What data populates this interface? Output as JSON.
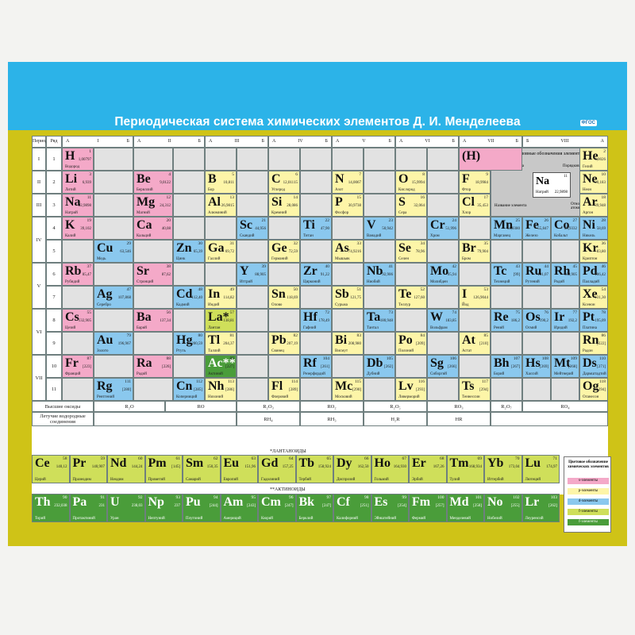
{
  "title": "Периодическая система химических элементов Д. И. Менделеева",
  "badge": "ФГОС",
  "header": {
    "period": "Период",
    "row": "Ряд",
    "viii": "VIII"
  },
  "groups": [
    {
      "a": "А",
      "n": "I",
      "b": "Б"
    },
    {
      "a": "А",
      "n": "II",
      "b": "Б"
    },
    {
      "a": "А",
      "n": "III",
      "b": "Б"
    },
    {
      "a": "А",
      "n": "IV",
      "b": "Б"
    },
    {
      "a": "А",
      "n": "V",
      "b": "Б"
    },
    {
      "a": "А",
      "n": "VI",
      "b": "Б"
    },
    {
      "a": "А",
      "n": "VII",
      "b": "Б"
    }
  ],
  "periods": [
    "I",
    "II",
    "III",
    "IV",
    "V",
    "VI",
    "VII"
  ],
  "rows": [
    "1",
    "2",
    "3",
    "4",
    "5",
    "6",
    "7",
    "8",
    "9",
    "10",
    "11"
  ],
  "legend_box": {
    "title": "Условные обозначения элементов",
    "symbol_label": "Символ элемента",
    "number_label": "Порядковый номер",
    "name_label": "Название элемента",
    "mass_label": "Относительная атомная масса",
    "sym": "Na",
    "num": "11",
    "mass": "22,9898",
    "name": "Натрий"
  },
  "oxides_label": "Высшие оксиды",
  "hydrides_label": "Летучие водородные соединения",
  "oxides": [
    "R₂O",
    "RO",
    "R₂O₃",
    "RO₂",
    "R₂O₅",
    "RO₃",
    "R₂O₇",
    "RO₄"
  ],
  "hydrides": [
    "RH₄",
    "RH₃",
    "H₂R",
    "HR"
  ],
  "lanthanides_label": "*ЛАНТАНОИДЫ",
  "actinides_label": "**АКТИНОИДЫ",
  "color_legend": {
    "title": "Цветовое обозначение химических элементов",
    "items": [
      "s-элементы",
      "p-элементы",
      "d-элементы",
      "f-элементы",
      "f-элементы"
    ]
  },
  "colors": {
    "s": "#f4a9c8",
    "p": "#fdf5a8",
    "d": "#8ac8ee",
    "f": "#cfdf5a",
    "f2": "#4a9d3a"
  },
  "elements": [
    {
      "s": "H",
      "n": "1",
      "m": "1,00797",
      "nm": "Водород",
      "t": "s",
      "r": 0,
      "c": 0
    },
    {
      "s": "(H)",
      "n": "",
      "m": "",
      "nm": "",
      "t": "s",
      "r": 0,
      "c": 12
    },
    {
      "s": "He",
      "n": "2",
      "m": "4,0026",
      "nm": "Гелий",
      "t": "p",
      "r": 0,
      "c": 15
    },
    {
      "s": "Li",
      "n": "3",
      "m": "6,939",
      "nm": "Литий",
      "t": "s",
      "r": 1,
      "c": 0
    },
    {
      "s": "Be",
      "n": "4",
      "m": "9,0122",
      "nm": "Бериллий",
      "t": "s",
      "r": 1,
      "c": 2
    },
    {
      "s": "B",
      "n": "5",
      "m": "10,811",
      "nm": "Бор",
      "t": "p",
      "r": 1,
      "c": 4
    },
    {
      "s": "C",
      "n": "6",
      "m": "12,01115",
      "nm": "Углерод",
      "t": "p",
      "r": 1,
      "c": 6
    },
    {
      "s": "N",
      "n": "7",
      "m": "14,0067",
      "nm": "Азот",
      "t": "p",
      "r": 1,
      "c": 8
    },
    {
      "s": "O",
      "n": "8",
      "m": "15,9994",
      "nm": "Кислород",
      "t": "p",
      "r": 1,
      "c": 10
    },
    {
      "s": "F",
      "n": "9",
      "m": "18,9984",
      "nm": "Фтор",
      "t": "p",
      "r": 1,
      "c": 12
    },
    {
      "s": "Ne",
      "n": "10",
      "m": "20,183",
      "nm": "Неон",
      "t": "p",
      "r": 1,
      "c": 15
    },
    {
      "s": "Na",
      "n": "11",
      "m": "22,9898",
      "nm": "Натрий",
      "t": "s",
      "r": 2,
      "c": 0
    },
    {
      "s": "Mg",
      "n": "12",
      "m": "24,312",
      "nm": "Магний",
      "t": "s",
      "r": 2,
      "c": 2
    },
    {
      "s": "Al",
      "n": "13",
      "m": "26,9815",
      "nm": "Алюминий",
      "t": "p",
      "r": 2,
      "c": 4
    },
    {
      "s": "Si",
      "n": "14",
      "m": "28,086",
      "nm": "Кремний",
      "t": "p",
      "r": 2,
      "c": 6
    },
    {
      "s": "P",
      "n": "15",
      "m": "30,9738",
      "nm": "Фосфор",
      "t": "p",
      "r": 2,
      "c": 8
    },
    {
      "s": "S",
      "n": "16",
      "m": "32,064",
      "nm": "Сера",
      "t": "p",
      "r": 2,
      "c": 10
    },
    {
      "s": "Cl",
      "n": "17",
      "m": "35,453",
      "nm": "Хлор",
      "t": "p",
      "r": 2,
      "c": 12
    },
    {
      "s": "Ar",
      "n": "18",
      "m": "39,948",
      "nm": "Аргон",
      "t": "p",
      "r": 2,
      "c": 15
    },
    {
      "s": "K",
      "n": "19",
      "m": "39,102",
      "nm": "Калий",
      "t": "s",
      "r": 3,
      "c": 0
    },
    {
      "s": "Ca",
      "n": "20",
      "m": "40,08",
      "nm": "Кальций",
      "t": "s",
      "r": 3,
      "c": 2
    },
    {
      "s": "Sc",
      "n": "21",
      "m": "44,956",
      "nm": "Скандий",
      "t": "d",
      "r": 3,
      "c": 5
    },
    {
      "s": "Ti",
      "n": "22",
      "m": "47,90",
      "nm": "Титан",
      "t": "d",
      "r": 3,
      "c": 7
    },
    {
      "s": "V",
      "n": "23",
      "m": "50,942",
      "nm": "Ванадий",
      "t": "d",
      "r": 3,
      "c": 9
    },
    {
      "s": "Cr",
      "n": "24",
      "m": "51,996",
      "nm": "Хром",
      "t": "d",
      "r": 3,
      "c": 11
    },
    {
      "s": "Mn",
      "n": "25",
      "m": "54,9380",
      "nm": "Марганец",
      "t": "d",
      "r": 3,
      "c": 13
    },
    {
      "s": "Fe",
      "n": "26",
      "m": "55,847",
      "nm": "Железо",
      "t": "d",
      "r": 3,
      "c": 14
    },
    {
      "s": "Co",
      "n": "27",
      "m": "58,9332",
      "nm": "Кобальт",
      "t": "d",
      "r": 3,
      "c": 15
    },
    {
      "s": "Ni",
      "n": "28",
      "m": "58,69",
      "nm": "Никель",
      "t": "d",
      "r": 3,
      "c": 16
    },
    {
      "s": "Cu",
      "n": "29",
      "m": "63,546",
      "nm": "Медь",
      "t": "d",
      "r": 4,
      "c": 1
    },
    {
      "s": "Zn",
      "n": "30",
      "m": "65,39",
      "nm": "Цинк",
      "t": "d",
      "r": 4,
      "c": 3
    },
    {
      "s": "Ga",
      "n": "31",
      "m": "69,72",
      "nm": "Галлий",
      "t": "p",
      "r": 4,
      "c": 4
    },
    {
      "s": "Ge",
      "n": "32",
      "m": "72,59",
      "nm": "Германий",
      "t": "p",
      "r": 4,
      "c": 6
    },
    {
      "s": "As",
      "n": "33",
      "m": "74,9216",
      "nm": "Мышьяк",
      "t": "p",
      "r": 4,
      "c": 8
    },
    {
      "s": "Se",
      "n": "34",
      "m": "78,96",
      "nm": "Селен",
      "t": "p",
      "r": 4,
      "c": 10
    },
    {
      "s": "Br",
      "n": "35",
      "m": "79,904",
      "nm": "Бром",
      "t": "p",
      "r": 4,
      "c": 12
    },
    {
      "s": "Kr",
      "n": "36",
      "m": "83,80",
      "nm": "Криптон",
      "t": "p",
      "r": 4,
      "c": 16
    },
    {
      "s": "Rb",
      "n": "37",
      "m": "85,47",
      "nm": "Рубидий",
      "t": "s",
      "r": 5,
      "c": 0
    },
    {
      "s": "Sr",
      "n": "38",
      "m": "87,62",
      "nm": "Стронций",
      "t": "s",
      "r": 5,
      "c": 2
    },
    {
      "s": "Y",
      "n": "39",
      "m": "88,905",
      "nm": "Иттрий",
      "t": "d",
      "r": 5,
      "c": 5
    },
    {
      "s": "Zr",
      "n": "40",
      "m": "91,22",
      "nm": "Цирконий",
      "t": "d",
      "r": 5,
      "c": 7
    },
    {
      "s": "Nb",
      "n": "41",
      "m": "92,906",
      "nm": "Ниобий",
      "t": "d",
      "r": 5,
      "c": 9
    },
    {
      "s": "Mo",
      "n": "42",
      "m": "95,94",
      "nm": "Молибден",
      "t": "d",
      "r": 5,
      "c": 11
    },
    {
      "s": "Tc",
      "n": "43",
      "m": "[99]",
      "nm": "Технеций",
      "t": "d",
      "r": 5,
      "c": 13
    },
    {
      "s": "Ru",
      "n": "44",
      "m": "101,07",
      "nm": "Рутений",
      "t": "d",
      "r": 5,
      "c": 14
    },
    {
      "s": "Rh",
      "n": "45",
      "m": "102,905",
      "nm": "Родий",
      "t": "d",
      "r": 5,
      "c": 15
    },
    {
      "s": "Pd",
      "n": "46",
      "m": "106,42",
      "nm": "Палладий",
      "t": "d",
      "r": 5,
      "c": 16
    },
    {
      "s": "Ag",
      "n": "47",
      "m": "107,868",
      "nm": "Серебро",
      "t": "d",
      "r": 6,
      "c": 1
    },
    {
      "s": "Cd",
      "n": "48",
      "m": "112,40",
      "nm": "Кадмий",
      "t": "d",
      "r": 6,
      "c": 3
    },
    {
      "s": "In",
      "n": "49",
      "m": "114,82",
      "nm": "Индий",
      "t": "p",
      "r": 6,
      "c": 4
    },
    {
      "s": "Sn",
      "n": "50",
      "m": "118,69",
      "nm": "Олово",
      "t": "p",
      "r": 6,
      "c": 6
    },
    {
      "s": "Sb",
      "n": "51",
      "m": "121,75",
      "nm": "Сурьма",
      "t": "p",
      "r": 6,
      "c": 8
    },
    {
      "s": "Te",
      "n": "52",
      "m": "127,60",
      "nm": "Теллур",
      "t": "p",
      "r": 6,
      "c": 10
    },
    {
      "s": "I",
      "n": "53",
      "m": "126,9044",
      "nm": "Йод",
      "t": "p",
      "r": 6,
      "c": 12
    },
    {
      "s": "Xe",
      "n": "54",
      "m": "131,30",
      "nm": "Ксенон",
      "t": "p",
      "r": 6,
      "c": 16
    },
    {
      "s": "Cs",
      "n": "55",
      "m": "132,905",
      "nm": "Цезий",
      "t": "s",
      "r": 7,
      "c": 0
    },
    {
      "s": "Ba",
      "n": "56",
      "m": "137,34",
      "nm": "Барий",
      "t": "s",
      "r": 7,
      "c": 2
    },
    {
      "s": "La*",
      "n": "57",
      "m": "138,81",
      "nm": "Лантан",
      "t": "f",
      "r": 7,
      "c": 4
    },
    {
      "s": "Hf",
      "n": "72",
      "m": "178,49",
      "nm": "Гафний",
      "t": "d",
      "r": 7,
      "c": 7
    },
    {
      "s": "Ta",
      "n": "73",
      "m": "180,948",
      "nm": "Тантал",
      "t": "d",
      "r": 7,
      "c": 9
    },
    {
      "s": "W",
      "n": "74",
      "m": "183,85",
      "nm": "Вольфрам",
      "t": "d",
      "r": 7,
      "c": 11
    },
    {
      "s": "Re",
      "n": "75",
      "m": "186,2",
      "nm": "Рений",
      "t": "d",
      "r": 7,
      "c": 13
    },
    {
      "s": "Os",
      "n": "76",
      "m": "190,2",
      "nm": "Осмий",
      "t": "d",
      "r": 7,
      "c": 14
    },
    {
      "s": "Ir",
      "n": "77",
      "m": "192,2",
      "nm": "Иридий",
      "t": "d",
      "r": 7,
      "c": 15
    },
    {
      "s": "Pt",
      "n": "78",
      "m": "195,09",
      "nm": "Платина",
      "t": "d",
      "r": 7,
      "c": 16
    },
    {
      "s": "Au",
      "n": "79",
      "m": "196,967",
      "nm": "Золото",
      "t": "d",
      "r": 8,
      "c": 1
    },
    {
      "s": "Hg",
      "n": "80",
      "m": "200,59",
      "nm": "Ртуть",
      "t": "d",
      "r": 8,
      "c": 3
    },
    {
      "s": "Tl",
      "n": "81",
      "m": "204,37",
      "nm": "Таллий",
      "t": "p",
      "r": 8,
      "c": 4
    },
    {
      "s": "Pb",
      "n": "82",
      "m": "207,19",
      "nm": "Свинец",
      "t": "p",
      "r": 8,
      "c": 6
    },
    {
      "s": "Bi",
      "n": "83",
      "m": "208,980",
      "nm": "Висмут",
      "t": "p",
      "r": 8,
      "c": 8
    },
    {
      "s": "Po",
      "n": "84",
      "m": "[209]",
      "nm": "Полоний",
      "t": "p",
      "r": 8,
      "c": 10
    },
    {
      "s": "At",
      "n": "85",
      "m": "[210]",
      "nm": "Астат",
      "t": "p",
      "r": 8,
      "c": 12
    },
    {
      "s": "Rn",
      "n": "86",
      "m": "[222]",
      "nm": "Радон",
      "t": "p",
      "r": 8,
      "c": 16
    },
    {
      "s": "Fr",
      "n": "87",
      "m": "[223]",
      "nm": "Франций",
      "t": "s",
      "r": 9,
      "c": 0
    },
    {
      "s": "Ra",
      "n": "88",
      "m": "[226]",
      "nm": "Радий",
      "t": "s",
      "r": 9,
      "c": 2
    },
    {
      "s": "Ac**",
      "n": "89",
      "m": "[227]",
      "nm": "Актиний",
      "t": "f2",
      "r": 9,
      "c": 4
    },
    {
      "s": "Rf",
      "n": "104",
      "m": "[261]",
      "nm": "Резерфордий",
      "t": "d",
      "r": 9,
      "c": 7
    },
    {
      "s": "Db",
      "n": "105",
      "m": "[262]",
      "nm": "Дубний",
      "t": "d",
      "r": 9,
      "c": 9
    },
    {
      "s": "Sg",
      "n": "106",
      "m": "[266]",
      "nm": "Сиборгий",
      "t": "d",
      "r": 9,
      "c": 11
    },
    {
      "s": "Bh",
      "n": "107",
      "m": "[267]",
      "nm": "Борий",
      "t": "d",
      "r": 9,
      "c": 13
    },
    {
      "s": "Hs",
      "n": "108",
      "m": "[269]",
      "nm": "Хассий",
      "t": "d",
      "r": 9,
      "c": 14
    },
    {
      "s": "Mt",
      "n": "109",
      "m": "[268]",
      "nm": "Мейтнерий",
      "t": "d",
      "r": 9,
      "c": 15
    },
    {
      "s": "Ds",
      "n": "110",
      "m": "[271]",
      "nm": "Дармштадтий",
      "t": "d",
      "r": 9,
      "c": 16
    },
    {
      "s": "Rg",
      "n": "111",
      "m": "[280]",
      "nm": "Рентгений",
      "t": "d",
      "r": 10,
      "c": 1
    },
    {
      "s": "Cn",
      "n": "112",
      "m": "[285]",
      "nm": "Коперниций",
      "t": "d",
      "r": 10,
      "c": 3
    },
    {
      "s": "Nh",
      "n": "113",
      "m": "[286]",
      "nm": "Нихоний",
      "t": "p",
      "r": 10,
      "c": 4
    },
    {
      "s": "Fl",
      "n": "114",
      "m": "[289]",
      "nm": "Флеровий",
      "t": "p",
      "r": 10,
      "c": 6
    },
    {
      "s": "Mc",
      "n": "115",
      "m": "[290]",
      "nm": "Московий",
      "t": "p",
      "r": 10,
      "c": 8
    },
    {
      "s": "Lv",
      "n": "116",
      "m": "[293]",
      "nm": "Ливерморий",
      "t": "p",
      "r": 10,
      "c": 10
    },
    {
      "s": "Ts",
      "n": "117",
      "m": "[294]",
      "nm": "Теннессин",
      "t": "p",
      "r": 10,
      "c": 12
    },
    {
      "s": "Og",
      "n": "118",
      "m": "[294]",
      "nm": "Оганесон",
      "t": "p",
      "r": 10,
      "c": 16
    }
  ],
  "lanthanides": [
    {
      "s": "Ce",
      "n": "58",
      "m": "140,12",
      "nm": "Церий"
    },
    {
      "s": "Pr",
      "n": "59",
      "m": "140,907",
      "nm": "Празеодим"
    },
    {
      "s": "Nd",
      "n": "60",
      "m": "144,24",
      "nm": "Неодим"
    },
    {
      "s": "Pm",
      "n": "61",
      "m": "[145]",
      "nm": "Прометий"
    },
    {
      "s": "Sm",
      "n": "62",
      "m": "150,35",
      "nm": "Самарий"
    },
    {
      "s": "Eu",
      "n": "63",
      "m": "151,96",
      "nm": "Европий"
    },
    {
      "s": "Gd",
      "n": "64",
      "m": "157,25",
      "nm": "Гадолиний"
    },
    {
      "s": "Tb",
      "n": "65",
      "m": "158,924",
      "nm": "Тербий"
    },
    {
      "s": "Dy",
      "n": "66",
      "m": "162,50",
      "nm": "Диспрозий"
    },
    {
      "s": "Ho",
      "n": "67",
      "m": "164,930",
      "nm": "Гольмий"
    },
    {
      "s": "Er",
      "n": "68",
      "m": "167,26",
      "nm": "Эрбий"
    },
    {
      "s": "Tm",
      "n": "69",
      "m": "168,934",
      "nm": "Тулий"
    },
    {
      "s": "Yb",
      "n": "70",
      "m": "173,04",
      "nm": "Иттербий"
    },
    {
      "s": "Lu",
      "n": "71",
      "m": "174,97",
      "nm": "Лютеций"
    }
  ],
  "actinides": [
    {
      "s": "Th",
      "n": "90",
      "m": "232,038",
      "nm": "Торий"
    },
    {
      "s": "Pa",
      "n": "91",
      "m": "231",
      "nm": "Протактиний"
    },
    {
      "s": "U",
      "n": "92",
      "m": "238,03",
      "nm": "Уран"
    },
    {
      "s": "Np",
      "n": "93",
      "m": "237",
      "nm": "Нептуний"
    },
    {
      "s": "Pu",
      "n": "94",
      "m": "[244]",
      "nm": "Плутоний"
    },
    {
      "s": "Am",
      "n": "95",
      "m": "[243]",
      "nm": "Америций"
    },
    {
      "s": "Cm",
      "n": "96",
      "m": "[247]",
      "nm": "Кюрий"
    },
    {
      "s": "Bk",
      "n": "97",
      "m": "[247]",
      "nm": "Берклий"
    },
    {
      "s": "Cf",
      "n": "98",
      "m": "[251]",
      "nm": "Калифорний"
    },
    {
      "s": "Es",
      "n": "99",
      "m": "[254]",
      "nm": "Эйнштейний"
    },
    {
      "s": "Fm",
      "n": "100",
      "m": "[257]",
      "nm": "Фермий"
    },
    {
      "s": "Md",
      "n": "101",
      "m": "[258]",
      "nm": "Менделевий"
    },
    {
      "s": "No",
      "n": "102",
      "m": "[255]",
      "nm": "Нобелий"
    },
    {
      "s": "Lr",
      "n": "103",
      "m": "[262]",
      "nm": "Лоуренсий"
    }
  ]
}
